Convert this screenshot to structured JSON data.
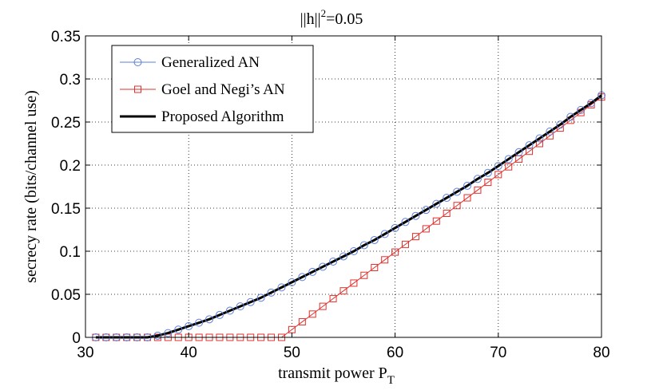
{
  "chart_data": {
    "type": "line",
    "title": {
      "prefix": "||h||",
      "sup": "2",
      "suffix": "=0.05"
    },
    "xlabel": {
      "main": "transmit power P",
      "sub": "T"
    },
    "ylabel": "secrecy rate (bits/channel use)",
    "xlim": [
      30,
      80
    ],
    "ylim": [
      0,
      0.35
    ],
    "grid": true,
    "legend_position": "top-left",
    "x_ticks": [
      30,
      40,
      50,
      60,
      70,
      80
    ],
    "x_tick_labels": [
      "30",
      "40",
      "50",
      "60",
      "70",
      "80"
    ],
    "y_ticks": [
      0,
      0.05,
      0.1,
      0.15,
      0.2,
      0.25,
      0.3,
      0.35
    ],
    "y_tick_labels": [
      "0",
      "0.05",
      "0.1",
      "0.15",
      "0.2",
      "0.25",
      "0.3",
      "0.35"
    ],
    "x": [
      31,
      32,
      33,
      34,
      35,
      36,
      37,
      38,
      39,
      40,
      41,
      42,
      43,
      44,
      45,
      46,
      47,
      48,
      49,
      50,
      51,
      52,
      53,
      54,
      55,
      56,
      57,
      58,
      59,
      60,
      61,
      62,
      63,
      64,
      65,
      66,
      67,
      68,
      69,
      70,
      71,
      72,
      73,
      74,
      75,
      76,
      77,
      78,
      79,
      80
    ],
    "series": [
      {
        "name": "Generalized AN",
        "color": "#5b7fd9",
        "marker": "circle",
        "values": [
          0,
          0,
          0,
          0,
          0,
          0,
          0.002,
          0.005,
          0.009,
          0.013,
          0.017,
          0.021,
          0.026,
          0.031,
          0.036,
          0.041,
          0.046,
          0.052,
          0.058,
          0.064,
          0.07,
          0.076,
          0.082,
          0.088,
          0.094,
          0.1,
          0.107,
          0.113,
          0.12,
          0.127,
          0.134,
          0.141,
          0.148,
          0.155,
          0.162,
          0.169,
          0.176,
          0.184,
          0.191,
          0.199,
          0.207,
          0.215,
          0.223,
          0.231,
          0.239,
          0.247,
          0.256,
          0.264,
          0.272,
          0.281
        ]
      },
      {
        "name": "Goel and Negi’s AN",
        "color": "#e0302c",
        "marker": "square",
        "values": [
          0,
          0,
          0,
          0,
          0,
          0,
          0,
          0,
          0,
          0,
          0,
          0,
          0,
          0,
          0,
          0,
          0,
          0,
          0,
          0.009,
          0.018,
          0.027,
          0.036,
          0.045,
          0.054,
          0.063,
          0.072,
          0.081,
          0.09,
          0.099,
          0.108,
          0.117,
          0.126,
          0.135,
          0.144,
          0.153,
          0.162,
          0.171,
          0.18,
          0.189,
          0.198,
          0.207,
          0.216,
          0.225,
          0.234,
          0.243,
          0.252,
          0.261,
          0.27,
          0.279
        ]
      },
      {
        "name": "Proposed Algorithm",
        "color": "#000000",
        "marker": "none",
        "values": [
          0,
          0,
          0,
          0,
          0,
          0,
          0.002,
          0.005,
          0.009,
          0.013,
          0.017,
          0.021,
          0.026,
          0.031,
          0.036,
          0.041,
          0.046,
          0.052,
          0.058,
          0.064,
          0.07,
          0.076,
          0.082,
          0.088,
          0.094,
          0.1,
          0.107,
          0.113,
          0.12,
          0.127,
          0.134,
          0.141,
          0.148,
          0.155,
          0.162,
          0.169,
          0.176,
          0.184,
          0.191,
          0.199,
          0.207,
          0.215,
          0.223,
          0.231,
          0.239,
          0.247,
          0.256,
          0.264,
          0.272,
          0.281
        ]
      }
    ]
  }
}
